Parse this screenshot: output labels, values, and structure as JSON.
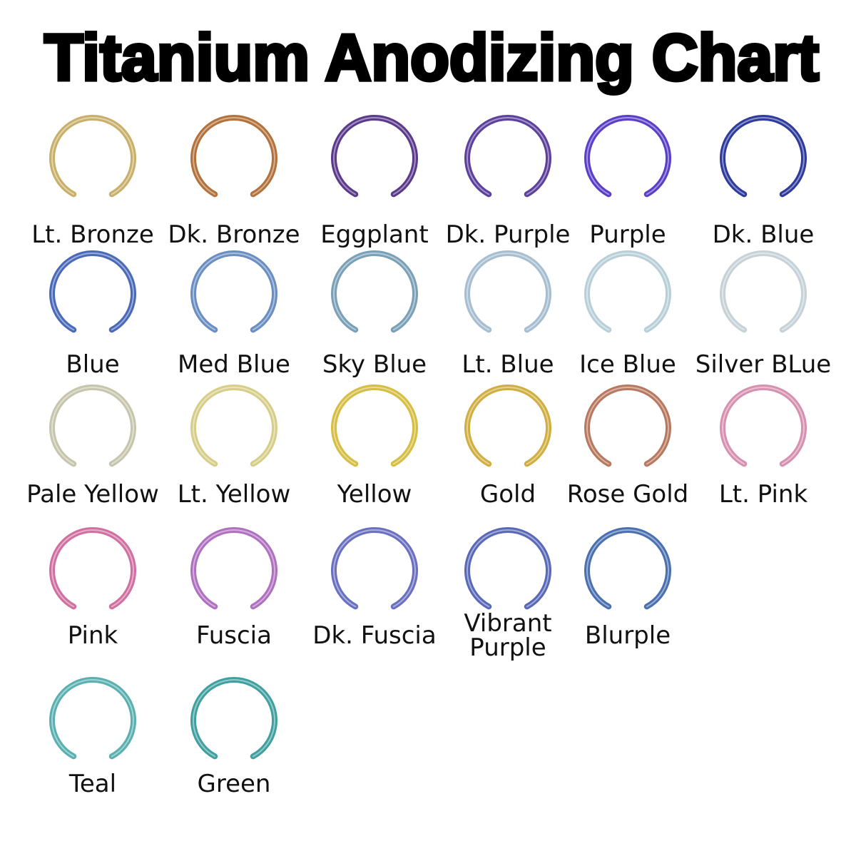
{
  "title": "Titanium Anodizing Chart",
  "rows": [
    {
      "items": [
        {
          "lines": [
            "Lt. Bronze"
          ],
          "color": "#c9b06a"
        },
        {
          "lines": [
            "Dk. Bronze"
          ],
          "color": "#b3723c"
        },
        {
          "lines": [
            "Eggplant"
          ],
          "color": "#5b3a8c"
        },
        {
          "lines": [
            "Dk. Purple"
          ],
          "color": "#5c409c"
        },
        {
          "lines": [
            "Purple"
          ],
          "color": "#5a3ec8"
        },
        {
          "lines": [
            "Dk. Blue"
          ],
          "color": "#2f3b9c"
        }
      ]
    },
    {
      "items": [
        {
          "lines": [
            "Blue"
          ],
          "color": "#4a6ab8"
        },
        {
          "lines": [
            "Med Blue"
          ],
          "color": "#6a8ec2"
        },
        {
          "lines": [
            "Sky Blue"
          ],
          "color": "#7aa0b8"
        },
        {
          "lines": [
            "Lt. Blue"
          ],
          "color": "#a6bed0"
        },
        {
          "lines": [
            "Ice Blue"
          ],
          "color": "#b8cfd8"
        },
        {
          "lines": [
            "Silver BLue"
          ],
          "color": "#c6d2d8"
        }
      ]
    },
    {
      "items": [
        {
          "lines": [
            "Pale Yellow"
          ],
          "color": "#c6c6ae"
        },
        {
          "lines": [
            "Lt. Yellow"
          ],
          "color": "#d6ce88"
        },
        {
          "lines": [
            "Yellow"
          ],
          "color": "#d6be42"
        },
        {
          "lines": [
            "Gold"
          ],
          "color": "#d0ae40"
        },
        {
          "lines": [
            "Rose Gold"
          ],
          "color": "#b87860"
        },
        {
          "lines": [
            "Lt. Pink"
          ],
          "color": "#d690b0"
        }
      ]
    },
    {
      "items": [
        {
          "lines": [
            "Pink"
          ],
          "color": "#d070a0"
        },
        {
          "lines": [
            "Fuscia"
          ],
          "color": "#b070c0"
        },
        {
          "lines": [
            "Dk. Fuscia"
          ],
          "color": "#6a70c0"
        },
        {
          "lines": [
            "Vibrant",
            "Purple"
          ],
          "color": "#5a68b8"
        },
        {
          "lines": [
            "Blurple"
          ],
          "color": "#4a70b0"
        }
      ]
    },
    {
      "items": [
        {
          "lines": [
            "Teal"
          ],
          "color": "#5ab0b0"
        },
        {
          "lines": [
            "Green"
          ],
          "color": "#40a0a0"
        }
      ]
    }
  ]
}
